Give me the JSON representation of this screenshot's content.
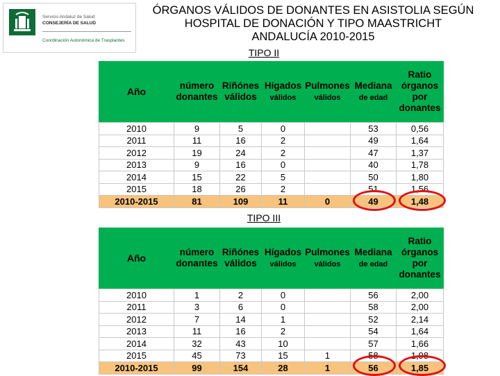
{
  "logo": {
    "line1": "Servicio Andaluz de Salud",
    "line2": "CONSEJERÍA DE SALUD",
    "line3": "Coordinación Autonómica de Trasplantes",
    "emblem": "junta-andalucia-emblem"
  },
  "title": {
    "line1": "ÓRGANOS VÁLIDOS DE DONANTES EN ASISTOLIA SEGÚN",
    "line2": "HOSPITAL DE DONACIÓN  Y TIPO MAASTRICHT",
    "line3": "ANDALUCÍA 2010-2015"
  },
  "headers": {
    "year": "Año",
    "donors_1": "número",
    "donors_2": "donantes",
    "kidneys_1": "Riñónes",
    "kidneys_2": "válidos",
    "livers_1": "Hígados",
    "livers_2": "válidos",
    "lungs_1": "Pulmones",
    "lungs_2": "válidos",
    "median_1": "Mediana",
    "median_2": "de edad",
    "ratio_1": "Ratio",
    "ratio_2": "órganos",
    "ratio_3": "por",
    "ratio_4": "donantes"
  },
  "tables": [
    {
      "label": "TIPO II",
      "rows": [
        [
          "2010",
          "9",
          "5",
          "0",
          "",
          "53",
          "0,56"
        ],
        [
          "2011",
          "11",
          "16",
          "2",
          "",
          "49",
          "1,64"
        ],
        [
          "2012",
          "19",
          "24",
          "2",
          "",
          "47",
          "1,37"
        ],
        [
          "2013",
          "9",
          "16",
          "0",
          "",
          "40",
          "1,78"
        ],
        [
          "2014",
          "15",
          "22",
          "5",
          "",
          "50",
          "1,80"
        ],
        [
          "2015",
          "18",
          "26",
          "2",
          "",
          "51",
          "1,56"
        ]
      ],
      "total": [
        "2010-2015",
        "81",
        "109",
        "11",
        "0",
        "49",
        "1,48"
      ]
    },
    {
      "label": "TIPO III",
      "rows": [
        [
          "2010",
          "1",
          "2",
          "0",
          "",
          "56",
          "2,00"
        ],
        [
          "2011",
          "3",
          "6",
          "0",
          "",
          "58",
          "2,00"
        ],
        [
          "2012",
          "7",
          "14",
          "1",
          "",
          "52",
          "2,14"
        ],
        [
          "2013",
          "11",
          "16",
          "2",
          "",
          "54",
          "1,64"
        ],
        [
          "2014",
          "32",
          "43",
          "10",
          "",
          "57",
          "1,66"
        ],
        [
          "2015",
          "45",
          "73",
          "15",
          "1",
          "58",
          "1,98"
        ]
      ],
      "total": [
        "2010-2015",
        "99",
        "154",
        "28",
        "1",
        "56",
        "1,85"
      ]
    }
  ],
  "colors": {
    "header_bg": "#00b050",
    "total_bg": "#f7c37d",
    "highlight_circle": "#e01010"
  }
}
